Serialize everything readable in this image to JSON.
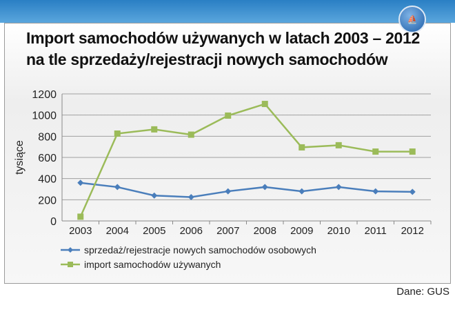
{
  "title_line1": "Import samochodów używanych w latach 2003 – 2012",
  "title_line2": "na tle sprzedaży/rejestracji nowych samochodów",
  "source": "Dane: GUS",
  "chart_data": {
    "type": "line",
    "title": "Import samochodów używanych w latach 2003 – 2012 na tle sprzedaży/rejestracji nowych samochodów",
    "ylabel": "tysiące",
    "xlabel": "",
    "ylim": [
      0,
      1200
    ],
    "yticks": [
      "0",
      "200",
      "400",
      "600",
      "800",
      "1000",
      "1200"
    ],
    "categories": [
      "2003",
      "2004",
      "2005",
      "2006",
      "2007",
      "2008",
      "2009",
      "2010",
      "2011",
      "2012"
    ],
    "grid": true,
    "legend": "bottom-left",
    "series": [
      {
        "name": "sprzedaż/rejestracje nowych samochodów osobowych",
        "color": "#4a7ebb",
        "marker": "diamond",
        "values": [
          360,
          320,
          240,
          225,
          280,
          320,
          280,
          320,
          280,
          275
        ]
      },
      {
        "name": "import samochodów używanych",
        "color": "#9bbb59",
        "marker": "square",
        "values": [
          40,
          825,
          865,
          815,
          995,
          1105,
          695,
          715,
          655,
          655
        ]
      }
    ]
  }
}
